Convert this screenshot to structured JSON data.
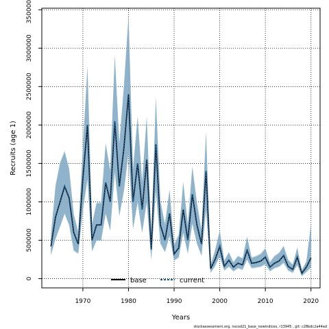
{
  "chart_data": {
    "type": "line",
    "title": "",
    "xlabel": "Years",
    "ylabel": "Recruits (age 1)",
    "xlim": [
      1961,
      2022
    ],
    "ylim": [
      -120000,
      3520000
    ],
    "x_ticks": [
      1970,
      1980,
      1990,
      2000,
      2010,
      2020
    ],
    "y_ticks": [
      0,
      500000,
      1000000,
      1500000,
      2000000,
      2500000,
      3000000,
      3500000
    ],
    "y_tick_labels": [
      "0",
      "500000",
      "1000000",
      "1500000",
      "2000000",
      "2500000",
      "3000000",
      "3500000"
    ],
    "grid": true,
    "legend_position": "bottom-center",
    "x": [
      1963,
      1964,
      1965,
      1966,
      1967,
      1968,
      1969,
      1970,
      1971,
      1972,
      1973,
      1974,
      1975,
      1976,
      1977,
      1978,
      1979,
      1980,
      1981,
      1982,
      1983,
      1984,
      1985,
      1986,
      1987,
      1988,
      1989,
      1990,
      1991,
      1992,
      1993,
      1994,
      1995,
      1996,
      1997,
      1998,
      1999,
      2000,
      2001,
      2002,
      2003,
      2004,
      2005,
      2006,
      2007,
      2008,
      2009,
      2010,
      2011,
      2012,
      2013,
      2014,
      2015,
      2016,
      2017,
      2018,
      2019,
      2020
    ],
    "series": [
      {
        "name": "base",
        "color": "#000000",
        "style": "solid",
        "values": [
          420000,
          800000,
          1000000,
          1200000,
          1050000,
          600000,
          450000,
          1300000,
          2000000,
          500000,
          700000,
          700000,
          1250000,
          1000000,
          2050000,
          1200000,
          1700000,
          2400000,
          1000000,
          1500000,
          900000,
          1550000,
          380000,
          1750000,
          700000,
          500000,
          850000,
          320000,
          400000,
          900000,
          500000,
          1100000,
          700000,
          450000,
          1400000,
          130000,
          250000,
          420000,
          160000,
          240000,
          150000,
          200000,
          180000,
          370000,
          200000,
          210000,
          230000,
          280000,
          150000,
          200000,
          230000,
          300000,
          160000,
          120000,
          280000,
          70000,
          150000,
          270000
        ]
      },
      {
        "name": "current",
        "color": "#1f5a8a",
        "style": "dashed",
        "values": [
          420000,
          800000,
          1000000,
          1200000,
          1050000,
          600000,
          450000,
          1300000,
          2000000,
          500000,
          700000,
          700000,
          1250000,
          1000000,
          2050000,
          1200000,
          1700000,
          2400000,
          1000000,
          1500000,
          900000,
          1550000,
          380000,
          1750000,
          700000,
          500000,
          850000,
          320000,
          400000,
          900000,
          500000,
          1100000,
          700000,
          450000,
          1400000,
          130000,
          250000,
          420000,
          160000,
          240000,
          150000,
          200000,
          180000,
          370000,
          200000,
          210000,
          230000,
          280000,
          150000,
          200000,
          230000,
          300000,
          160000,
          120000,
          280000,
          70000,
          150000,
          270000
        ]
      }
    ],
    "bands": [
      {
        "name": "base",
        "color": "#7aa6c2",
        "lower": [
          310000,
          520000,
          680000,
          850000,
          700000,
          370000,
          330000,
          900000,
          1300000,
          360000,
          500000,
          500000,
          850000,
          630000,
          1400000,
          820000,
          1150000,
          1650000,
          650000,
          1000000,
          600000,
          1000000,
          250000,
          1150000,
          460000,
          350000,
          560000,
          240000,
          280000,
          600000,
          330000,
          720000,
          460000,
          300000,
          900000,
          80000,
          170000,
          290000,
          110000,
          160000,
          100000,
          140000,
          120000,
          250000,
          140000,
          150000,
          160000,
          190000,
          100000,
          140000,
          160000,
          210000,
          110000,
          80000,
          180000,
          40000,
          90000,
          150000
        ],
        "upper": [
          560000,
          1200000,
          1500000,
          1650000,
          1420000,
          830000,
          600000,
          1700000,
          2750000,
          700000,
          980000,
          980000,
          1750000,
          1400000,
          2900000,
          1750000,
          2500000,
          3400000,
          1420000,
          2100000,
          1250000,
          2100000,
          540000,
          2350000,
          1000000,
          700000,
          1150000,
          430000,
          560000,
          1250000,
          700000,
          1450000,
          980000,
          620000,
          1900000,
          180000,
          370000,
          620000,
          230000,
          340000,
          210000,
          290000,
          260000,
          540000,
          270000,
          290000,
          320000,
          390000,
          210000,
          290000,
          330000,
          420000,
          240000,
          180000,
          400000,
          110000,
          220000,
          700000
        ]
      },
      {
        "name": "current",
        "color": "#8fb3cb",
        "lower": [
          300000,
          510000,
          670000,
          840000,
          690000,
          360000,
          320000,
          880000,
          1280000,
          350000,
          490000,
          490000,
          840000,
          620000,
          1380000,
          810000,
          1130000,
          1620000,
          640000,
          990000,
          590000,
          990000,
          240000,
          1130000,
          450000,
          340000,
          550000,
          230000,
          270000,
          590000,
          320000,
          710000,
          450000,
          290000,
          880000,
          70000,
          160000,
          280000,
          100000,
          150000,
          90000,
          130000,
          110000,
          240000,
          130000,
          140000,
          150000,
          180000,
          90000,
          130000,
          150000,
          200000,
          100000,
          70000,
          170000,
          30000,
          80000,
          140000
        ],
        "upper": [
          570000,
          1220000,
          1520000,
          1670000,
          1440000,
          850000,
          620000,
          1720000,
          2780000,
          720000,
          1000000,
          1000000,
          1770000,
          1420000,
          2920000,
          1770000,
          2520000,
          3430000,
          1440000,
          2120000,
          1270000,
          2120000,
          560000,
          2370000,
          1020000,
          720000,
          1170000,
          450000,
          580000,
          1270000,
          720000,
          1470000,
          1000000,
          640000,
          1920000,
          190000,
          380000,
          630000,
          240000,
          350000,
          220000,
          300000,
          270000,
          550000,
          280000,
          300000,
          330000,
          400000,
          220000,
          300000,
          340000,
          430000,
          250000,
          190000,
          410000,
          120000,
          230000,
          720000
        ]
      }
    ]
  },
  "legend": {
    "items": [
      {
        "label": "base"
      },
      {
        "label": "current"
      }
    ]
  },
  "footer": {
    "text": "stockassessment.org, nscod21_base_newindices, r13945 , git: c28bdc2a44ad"
  }
}
